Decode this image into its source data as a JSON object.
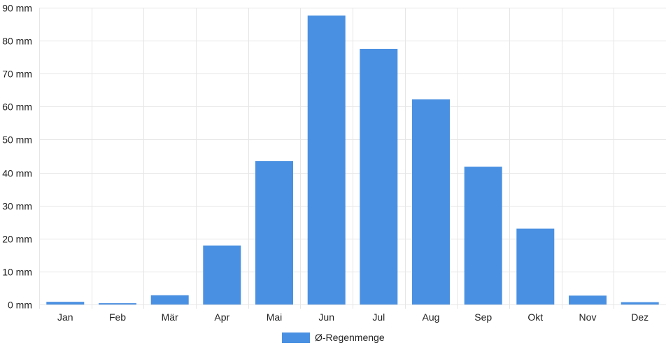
{
  "colors": {
    "bar": "#4a90e2",
    "grid": "#e6e6e6",
    "axis_text": "#222222",
    "background": "#ffffff"
  },
  "chart_data": {
    "type": "bar",
    "categories": [
      "Jan",
      "Feb",
      "Mär",
      "Apr",
      "Mai",
      "Jun",
      "Jul",
      "Aug",
      "Sep",
      "Okt",
      "Nov",
      "Dez"
    ],
    "series": [
      {
        "name": "Ø-Regenmenge",
        "values": [
          0.8,
          0.4,
          2.8,
          17.9,
          43.5,
          87.6,
          77.5,
          62.2,
          41.8,
          23.0,
          2.7,
          0.7
        ]
      }
    ],
    "y_unit": "mm",
    "ylim": [
      0,
      90
    ],
    "yticks": [
      0,
      10,
      20,
      30,
      40,
      50,
      60,
      70,
      80,
      90
    ],
    "ytick_labels": [
      "0 mm",
      "10 mm",
      "20 mm",
      "30 mm",
      "40 mm",
      "50 mm",
      "60 mm",
      "70 mm",
      "80 mm",
      "90 mm"
    ],
    "grid": true,
    "legend_position": "bottom-center"
  }
}
